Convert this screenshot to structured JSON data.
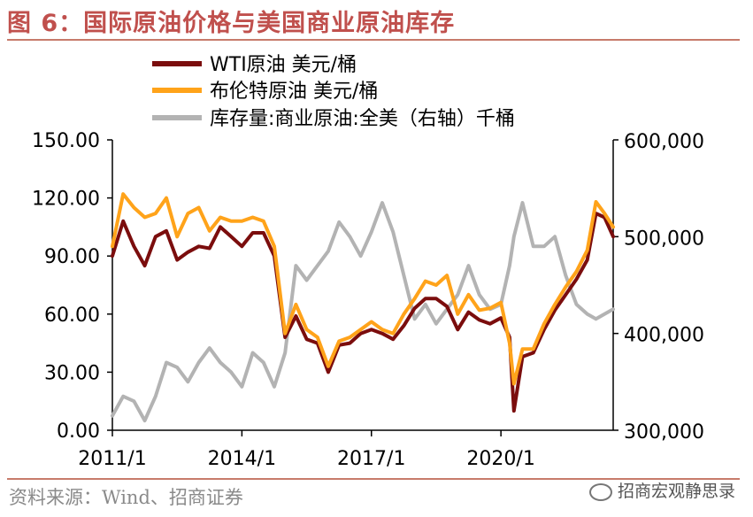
{
  "title": "图 6：国际原油价格与美国商业原油库存",
  "source": "资料来源：Wind、招商证券",
  "watermark": "招商宏观静思录",
  "colors": {
    "title": "#c0504d",
    "wti": "#7b0d0d",
    "brent": "#ffa31a",
    "inventory": "#b3b3b3"
  },
  "chart_data": {
    "type": "line",
    "title": "",
    "x_ticks": [
      "2011/1",
      "2014/1",
      "2017/1",
      "2020/1"
    ],
    "y_left": {
      "ticks": [
        "0.00",
        "30.00",
        "60.00",
        "90.00",
        "120.00",
        "150.00"
      ],
      "range": [
        0,
        150
      ]
    },
    "y_right": {
      "ticks": [
        "300,000",
        "400,000",
        "500,000",
        "600,000"
      ],
      "range": [
        300000,
        600000
      ]
    },
    "legend": [
      "WTI原油 美元/桶",
      "布伦特原油 美元/桶",
      "库存量:商业原油:全美（右轴）千桶"
    ],
    "series": [
      {
        "name": "WTI原油 美元/桶",
        "axis": "left",
        "x": [
          2011.0,
          2011.25,
          2011.5,
          2011.75,
          2012.0,
          2012.25,
          2012.5,
          2012.75,
          2013.0,
          2013.25,
          2013.5,
          2013.75,
          2014.0,
          2014.25,
          2014.5,
          2014.75,
          2015.0,
          2015.25,
          2015.5,
          2015.75,
          2016.0,
          2016.25,
          2016.5,
          2016.75,
          2017.0,
          2017.25,
          2017.5,
          2017.75,
          2018.0,
          2018.25,
          2018.5,
          2018.75,
          2019.0,
          2019.25,
          2019.5,
          2019.75,
          2020.0,
          2020.2,
          2020.3,
          2020.5,
          2020.75,
          2021.0,
          2021.25,
          2021.5,
          2021.75,
          2022.0,
          2022.2,
          2022.4,
          2022.6
        ],
        "values": [
          90,
          108,
          95,
          85,
          100,
          103,
          88,
          92,
          95,
          94,
          105,
          100,
          95,
          102,
          102,
          90,
          48,
          59,
          47,
          45,
          30,
          44,
          45,
          50,
          52,
          50,
          47,
          54,
          63,
          68,
          68,
          64,
          52,
          61,
          57,
          55,
          58,
          48,
          10,
          38,
          40,
          52,
          62,
          70,
          78,
          88,
          112,
          110,
          100
        ]
      },
      {
        "name": "布伦特原油 美元/桶",
        "axis": "left",
        "x": [
          2011.0,
          2011.25,
          2011.5,
          2011.75,
          2012.0,
          2012.25,
          2012.5,
          2012.75,
          2013.0,
          2013.25,
          2013.5,
          2013.75,
          2014.0,
          2014.25,
          2014.5,
          2014.75,
          2015.0,
          2015.25,
          2015.5,
          2015.75,
          2016.0,
          2016.25,
          2016.5,
          2016.75,
          2017.0,
          2017.25,
          2017.5,
          2017.75,
          2018.0,
          2018.25,
          2018.5,
          2018.75,
          2019.0,
          2019.25,
          2019.5,
          2019.75,
          2020.0,
          2020.2,
          2020.3,
          2020.5,
          2020.75,
          2021.0,
          2021.25,
          2021.5,
          2021.75,
          2022.0,
          2022.2,
          2022.4,
          2022.6
        ],
        "values": [
          95,
          122,
          115,
          110,
          112,
          120,
          100,
          112,
          115,
          103,
          110,
          108,
          108,
          110,
          108,
          95,
          50,
          65,
          52,
          48,
          33,
          46,
          48,
          52,
          56,
          52,
          50,
          60,
          68,
          77,
          75,
          80,
          60,
          70,
          62,
          63,
          66,
          45,
          24,
          42,
          42,
          55,
          65,
          74,
          82,
          93,
          118,
          112,
          105
        ]
      },
      {
        "name": "库存量:商业原油:全美（右轴）千桶",
        "axis": "right",
        "x": [
          2011.0,
          2011.25,
          2011.5,
          2011.75,
          2012.0,
          2012.25,
          2012.5,
          2012.75,
          2013.0,
          2013.25,
          2013.5,
          2013.75,
          2014.0,
          2014.25,
          2014.5,
          2014.75,
          2015.0,
          2015.25,
          2015.5,
          2015.75,
          2016.0,
          2016.25,
          2016.5,
          2016.75,
          2017.0,
          2017.25,
          2017.5,
          2017.75,
          2018.0,
          2018.25,
          2018.5,
          2018.75,
          2019.0,
          2019.25,
          2019.5,
          2019.75,
          2020.0,
          2020.2,
          2020.3,
          2020.5,
          2020.75,
          2021.0,
          2021.25,
          2021.5,
          2021.75,
          2022.0,
          2022.2,
          2022.4,
          2022.6
        ],
        "values": [
          315000,
          335000,
          330000,
          310000,
          335000,
          370000,
          365000,
          350000,
          370000,
          385000,
          370000,
          360000,
          345000,
          380000,
          370000,
          345000,
          380000,
          470000,
          455000,
          470000,
          485000,
          515000,
          500000,
          480000,
          505000,
          535000,
          505000,
          460000,
          415000,
          430000,
          410000,
          425000,
          440000,
          470000,
          440000,
          425000,
          430000,
          470000,
          500000,
          535000,
          490000,
          490000,
          500000,
          460000,
          430000,
          420000,
          415000,
          420000,
          425000
        ]
      }
    ]
  }
}
